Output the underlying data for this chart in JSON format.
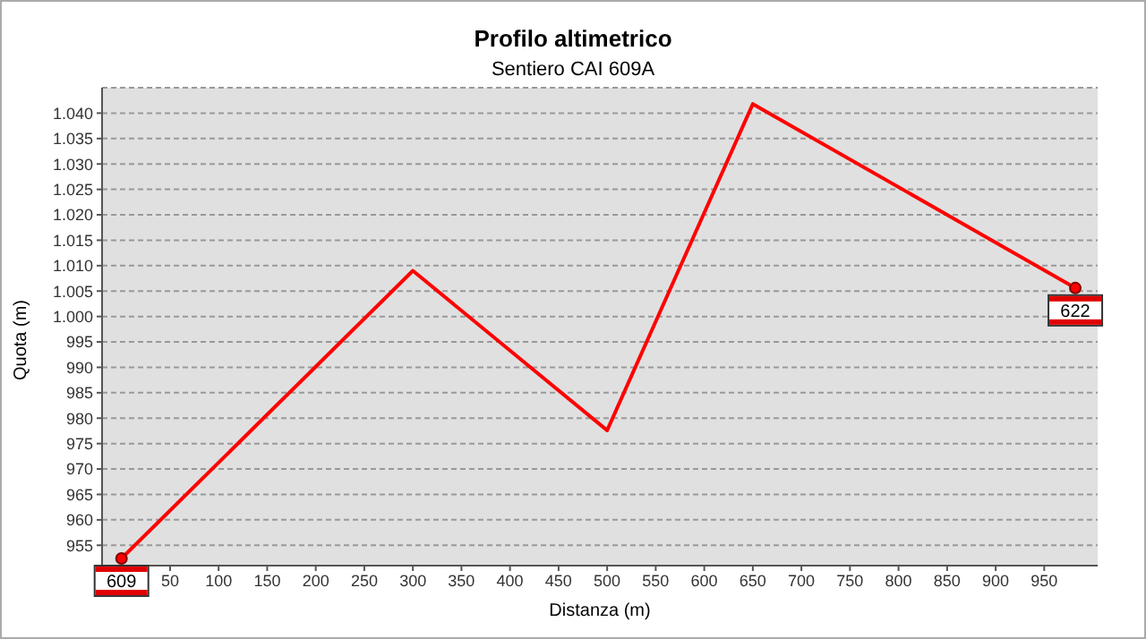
{
  "chart_data": {
    "type": "line",
    "title": "Profilo altimetrico",
    "subtitle": "Sentiero CAI 609A",
    "xlabel": "Distanza (m)",
    "ylabel": "Quota (m)",
    "x": [
      0,
      300,
      500,
      650,
      982
    ],
    "series": [
      {
        "color": "#ff0000",
        "values": [
          952.4,
          1009,
          977.6,
          1041.8,
          1005.6
        ]
      }
    ],
    "xlim": [
      -20,
      1005
    ],
    "xticks": [
      50,
      100,
      150,
      200,
      250,
      300,
      350,
      400,
      450,
      500,
      550,
      600,
      650,
      700,
      750,
      800,
      850,
      900,
      950
    ],
    "ylim": [
      951,
      1045
    ],
    "yticks": [
      955,
      960,
      965,
      970,
      975,
      980,
      985,
      990,
      995,
      {
        "value": 1000,
        "label": "1.000"
      },
      {
        "value": 1005,
        "label": "1.005"
      },
      {
        "value": 1010,
        "label": "1.010"
      },
      {
        "value": 1015,
        "label": "1.015"
      },
      {
        "value": 1020,
        "label": "1.020"
      },
      {
        "value": 1025,
        "label": "1.025"
      },
      {
        "value": 1030,
        "label": "1.030"
      },
      {
        "value": 1035,
        "label": "1.035"
      },
      {
        "value": 1040,
        "label": "1.040"
      }
    ],
    "grid": "y",
    "legend": false,
    "marker": "none",
    "line_style": "solid",
    "annotations": [
      {
        "text": "609",
        "x": 0,
        "y": 952.4
      },
      {
        "text": "622",
        "x": 982,
        "y": 1005.6
      }
    ]
  }
}
